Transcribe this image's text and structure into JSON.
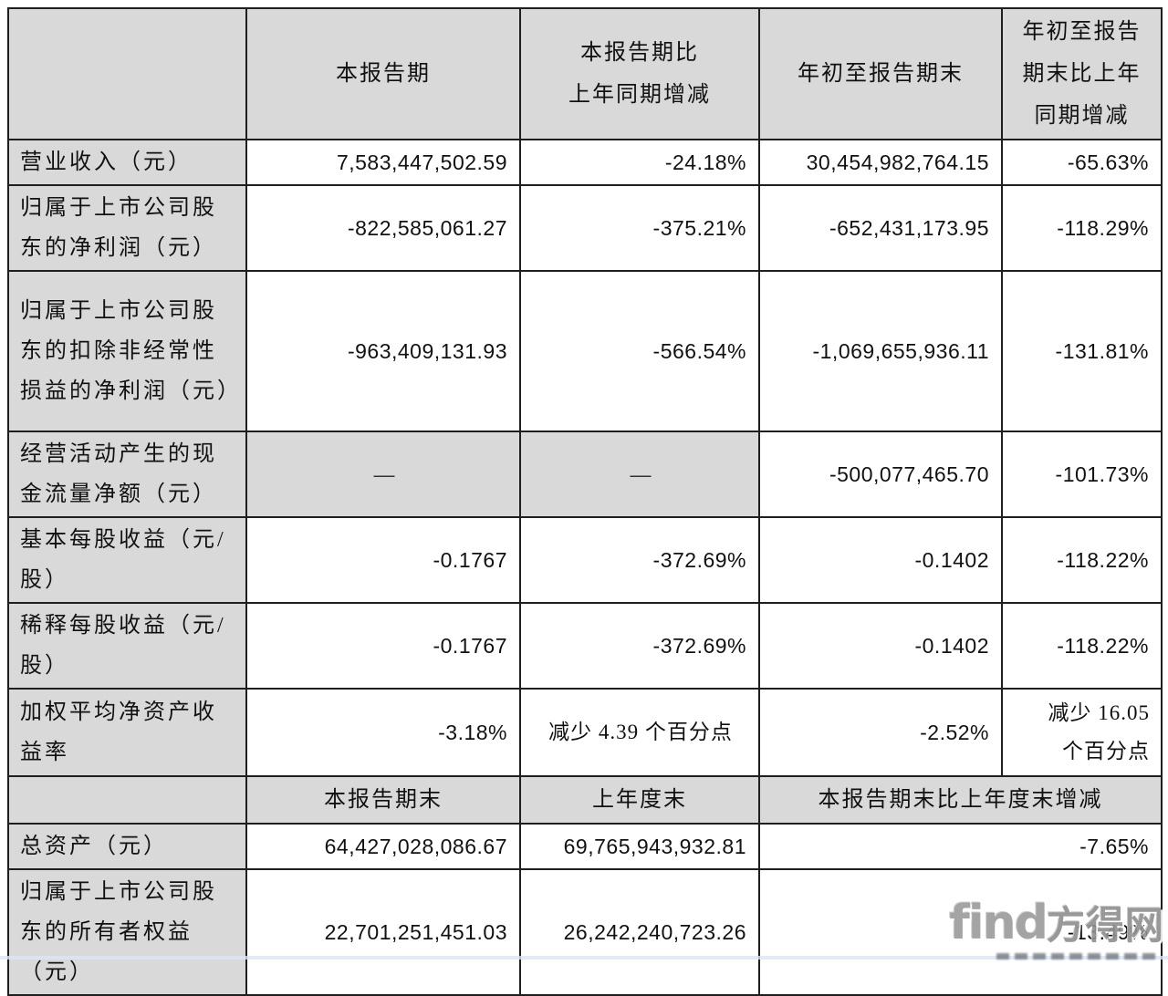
{
  "table": {
    "header_row1": {
      "col0": "",
      "col1": "本报告期",
      "col2": "本报告期比\n上年同期增减",
      "col3": "年初至报告期末",
      "col4": "年初至报告\n期末比上年\n同期增减"
    },
    "rows": [
      {
        "label": "营业收入（元）",
        "v1": "7,583,447,502.59",
        "v2": "-24.18%",
        "v3": "30,454,982,764.15",
        "v4": "-65.63%"
      },
      {
        "label": "归属于上市公司股东的净利润（元）",
        "v1": "-822,585,061.27",
        "v2": "-375.21%",
        "v3": "-652,431,173.95",
        "v4": "-118.29%"
      },
      {
        "label": "归属于上市公司股东的扣除非经常性损益的净利润（元）",
        "v1": "-963,409,131.93",
        "v2": "-566.54%",
        "v3": "-1,069,655,936.11",
        "v4": "-131.81%"
      },
      {
        "label": "经营活动产生的现金流量净额（元）",
        "v1": "—",
        "v2": "—",
        "v3": "-500,077,465.70",
        "v4": "-101.73%"
      },
      {
        "label": "基本每股收益（元/股）",
        "v1": "-0.1767",
        "v2": "-372.69%",
        "v3": "-0.1402",
        "v4": "-118.22%"
      },
      {
        "label": "稀释每股收益（元/股）",
        "v1": "-0.1767",
        "v2": "-372.69%",
        "v3": "-0.1402",
        "v4": "-118.22%"
      },
      {
        "label": "加权平均净资产收益率",
        "v1": "-3.18%",
        "v2": "减少 4.39 个百分点",
        "v3": "-2.52%",
        "v4": "减少 16.05\n个百分点"
      }
    ],
    "header_row2": {
      "col0": "",
      "col1": "本报告期末",
      "col2": "上年度末",
      "col34": "本报告期末比上年度末增减"
    },
    "rows2": [
      {
        "label": "总资产（元）",
        "v1": "64,427,028,086.67",
        "v2": "69,765,943,932.81",
        "v34": "-7.65%"
      },
      {
        "label": "归属于上市公司股东的所有者权益（元）",
        "v1": "22,701,251,451.03",
        "v2": "26,242,240,723.26",
        "v34": "-13.49%"
      }
    ]
  },
  "watermark": {
    "brand_en": "find",
    "brand_cn": "方得网"
  },
  "colors": {
    "cell_gray": "#d9d9d9",
    "border": "#1f1f1f",
    "watermark_gray": "#9b9b9b"
  }
}
